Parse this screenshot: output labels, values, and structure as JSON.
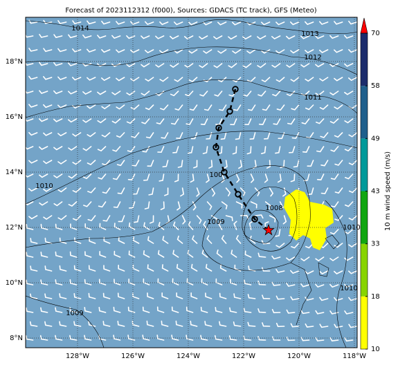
{
  "title": "Forecast of 2023112312 (f000), Sources: GDACS (TC track), GFS (Meteo)",
  "map": {
    "lon_range": [
      -129.875,
      -117.9
    ],
    "lat_range": [
      7.65,
      19.6
    ],
    "ocean_color": "#74a4c8",
    "lon_ticks": [
      {
        "value": -128,
        "label": "128°W"
      },
      {
        "value": -126,
        "label": "126°W"
      },
      {
        "value": -124,
        "label": "124°W"
      },
      {
        "value": -122,
        "label": "122°W"
      },
      {
        "value": -120,
        "label": "120°W"
      },
      {
        "value": -118,
        "label": "118°W"
      }
    ],
    "lat_ticks": [
      {
        "value": 8,
        "label": "8°N"
      },
      {
        "value": 10,
        "label": "10°N"
      },
      {
        "value": 12,
        "label": "12°N"
      },
      {
        "value": 14,
        "label": "14°N"
      },
      {
        "value": 16,
        "label": "16°N"
      },
      {
        "value": 18,
        "label": "18°N"
      }
    ]
  },
  "track": {
    "points": [
      {
        "lon": -122.3,
        "lat": 17.0
      },
      {
        "lon": -122.5,
        "lat": 16.2
      },
      {
        "lon": -122.9,
        "lat": 15.6
      },
      {
        "lon": -123.0,
        "lat": 14.9
      },
      {
        "lon": -122.7,
        "lat": 14.0
      },
      {
        "lon": -122.2,
        "lat": 13.2
      },
      {
        "lon": -121.6,
        "lat": 12.3
      },
      {
        "lon": -121.1,
        "lat": 11.9
      }
    ]
  },
  "contour_labels": [
    {
      "text": "1014",
      "lon": -127.9,
      "lat": 19.2
    },
    {
      "text": "1013",
      "lon": -119.6,
      "lat": 19.0
    },
    {
      "text": "1012",
      "lon": -119.5,
      "lat": 18.15
    },
    {
      "text": "1011",
      "lon": -119.5,
      "lat": 16.7
    },
    {
      "text": "1010",
      "lon": -129.2,
      "lat": 13.5
    },
    {
      "text": "100",
      "lon": -123.0,
      "lat": 13.9
    },
    {
      "text": "1009",
      "lon": -123.0,
      "lat": 12.2
    },
    {
      "text": "1008",
      "lon": -120.9,
      "lat": 12.7
    },
    {
      "text": "1010",
      "lon": -118.1,
      "lat": 12.0
    },
    {
      "text": "1010",
      "lon": -118.2,
      "lat": 9.8
    },
    {
      "text": "1009",
      "lon": -128.1,
      "lat": 8.9
    }
  ],
  "colorbar": {
    "label": "10 m wind speed (m/s)",
    "ticks": [
      10,
      18,
      33,
      43,
      49,
      58,
      70
    ],
    "colors": [
      "#ffff00",
      "#88d400",
      "#11a611",
      "#009a9a",
      "#1f5f8c",
      "#1c2c6c"
    ],
    "extend_color": "#ff0000"
  }
}
